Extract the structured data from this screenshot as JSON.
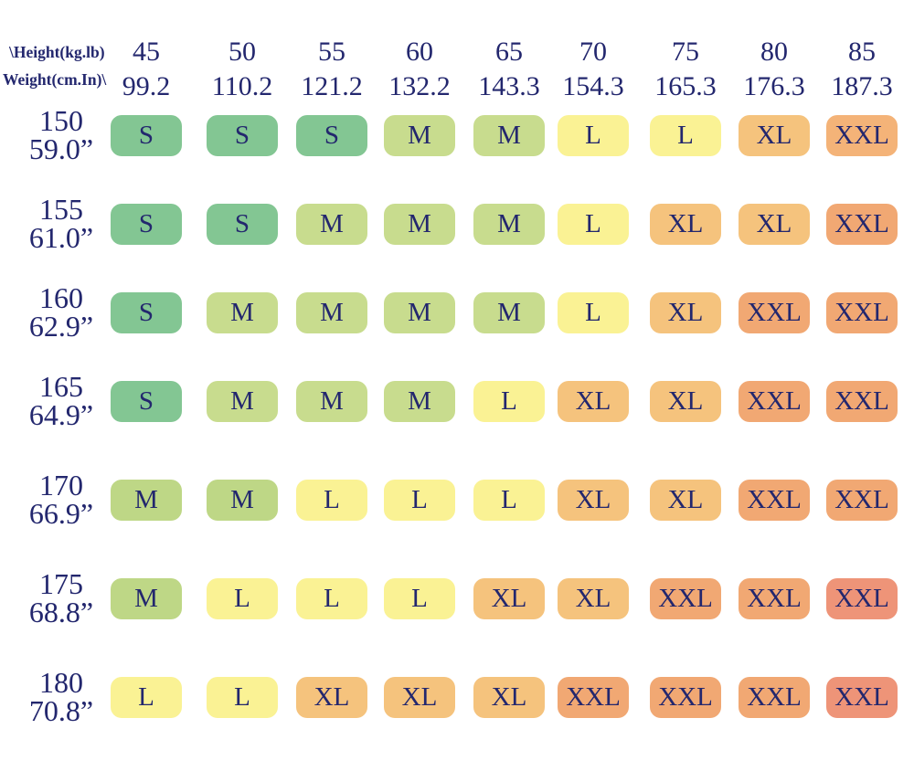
{
  "corner": {
    "line1": "\\Height(kg.lb)",
    "line2": "Weight(cm.In)\\"
  },
  "columns": [
    {
      "kg": "45",
      "lb": "99.2"
    },
    {
      "kg": "50",
      "lb": "110.2"
    },
    {
      "kg": "55",
      "lb": "121.2"
    },
    {
      "kg": "60",
      "lb": "132.2"
    },
    {
      "kg": "65",
      "lb": "143.3"
    },
    {
      "kg": "70",
      "lb": "154.3"
    },
    {
      "kg": "75",
      "lb": "165.3"
    },
    {
      "kg": "80",
      "lb": "176.3"
    },
    {
      "kg": "85",
      "lb": "187.3"
    }
  ],
  "rows": [
    {
      "cm": "150",
      "inch": "59.0”",
      "cells": [
        {
          "size": "S",
          "color": "s"
        },
        {
          "size": "S",
          "color": "s"
        },
        {
          "size": "S",
          "color": "s"
        },
        {
          "size": "M",
          "color": "m"
        },
        {
          "size": "M",
          "color": "m"
        },
        {
          "size": "L",
          "color": "l"
        },
        {
          "size": "L",
          "color": "l"
        },
        {
          "size": "XL",
          "color": "xl"
        },
        {
          "size": "XXL",
          "color": "xxl_light"
        }
      ]
    },
    {
      "cm": "155",
      "inch": "61.0”",
      "cells": [
        {
          "size": "S",
          "color": "s"
        },
        {
          "size": "S",
          "color": "s"
        },
        {
          "size": "M",
          "color": "m"
        },
        {
          "size": "M",
          "color": "m"
        },
        {
          "size": "M",
          "color": "m"
        },
        {
          "size": "L",
          "color": "l"
        },
        {
          "size": "XL",
          "color": "xl"
        },
        {
          "size": "XL",
          "color": "xl"
        },
        {
          "size": "XXL",
          "color": "xxl"
        }
      ]
    },
    {
      "cm": "160",
      "inch": "62.9”",
      "cells": [
        {
          "size": "S",
          "color": "s"
        },
        {
          "size": "M",
          "color": "m"
        },
        {
          "size": "M",
          "color": "m"
        },
        {
          "size": "M",
          "color": "m"
        },
        {
          "size": "M",
          "color": "m"
        },
        {
          "size": "L",
          "color": "l"
        },
        {
          "size": "XL",
          "color": "xl"
        },
        {
          "size": "XXL",
          "color": "xxl"
        },
        {
          "size": "XXL",
          "color": "xxl"
        }
      ]
    },
    {
      "cm": "165",
      "inch": "64.9”",
      "cells": [
        {
          "size": "S",
          "color": "s"
        },
        {
          "size": "M",
          "color": "m"
        },
        {
          "size": "M",
          "color": "m"
        },
        {
          "size": "M",
          "color": "m"
        },
        {
          "size": "L",
          "color": "l"
        },
        {
          "size": "XL",
          "color": "xl"
        },
        {
          "size": "XL",
          "color": "xl"
        },
        {
          "size": "XXL",
          "color": "xxl"
        },
        {
          "size": "XXL",
          "color": "xxl"
        }
      ]
    },
    {
      "cm": "170",
      "inch": "66.9”",
      "cells": [
        {
          "size": "M",
          "color": "m2"
        },
        {
          "size": "M",
          "color": "m2"
        },
        {
          "size": "L",
          "color": "l"
        },
        {
          "size": "L",
          "color": "l"
        },
        {
          "size": "L",
          "color": "l"
        },
        {
          "size": "XL",
          "color": "xl"
        },
        {
          "size": "XL",
          "color": "xl"
        },
        {
          "size": "XXL",
          "color": "xxl"
        },
        {
          "size": "XXL",
          "color": "xxl"
        }
      ]
    },
    {
      "cm": "175",
      "inch": "68.8”",
      "cells": [
        {
          "size": "M",
          "color": "m2"
        },
        {
          "size": "L",
          "color": "l"
        },
        {
          "size": "L",
          "color": "l"
        },
        {
          "size": "L",
          "color": "l"
        },
        {
          "size": "XL",
          "color": "xl"
        },
        {
          "size": "XL",
          "color": "xl"
        },
        {
          "size": "XXL",
          "color": "xxl"
        },
        {
          "size": "XXL",
          "color": "xxl"
        },
        {
          "size": "XXL",
          "color": "xxl_deep"
        }
      ]
    },
    {
      "cm": "180",
      "inch": "70.8”",
      "cells": [
        {
          "size": "L",
          "color": "l"
        },
        {
          "size": "L",
          "color": "l"
        },
        {
          "size": "XL",
          "color": "xl"
        },
        {
          "size": "XL",
          "color": "xl"
        },
        {
          "size": "XL",
          "color": "xl"
        },
        {
          "size": "XXL",
          "color": "xxl"
        },
        {
          "size": "XXL",
          "color": "xxl"
        },
        {
          "size": "XXL",
          "color": "xxl"
        },
        {
          "size": "XXL",
          "color": "xxl_deep"
        }
      ]
    }
  ],
  "palette": {
    "s": "#83C693",
    "m": "#C8DC8E",
    "m2": "#BED786",
    "l": "#FAF294",
    "xl": "#F5C37D",
    "xxl_light": "#F4B378",
    "xxl": "#F1A873",
    "xxl_deep": "#EE9478",
    "text": "#23276E"
  },
  "chart_data": {
    "type": "heatmap",
    "title": "Clothing size chart by weight (kg/lb) and height (cm/in)",
    "x_axis_label": "\\Height(kg.lb)",
    "y_axis_label": "Weight(cm.In)\\",
    "columns_kg": [
      45,
      50,
      55,
      60,
      65,
      70,
      75,
      80,
      85
    ],
    "columns_lb": [
      99.2,
      110.2,
      121.2,
      132.2,
      143.3,
      154.3,
      165.3,
      176.3,
      187.3
    ],
    "rows_cm": [
      150,
      155,
      160,
      165,
      170,
      175,
      180
    ],
    "rows_in": [
      "59.0",
      "61.0",
      "62.9",
      "64.9",
      "66.9",
      "68.8",
      "70.8"
    ],
    "sizes": [
      [
        "S",
        "S",
        "S",
        "M",
        "M",
        "L",
        "L",
        "XL",
        "XXL"
      ],
      [
        "S",
        "S",
        "M",
        "M",
        "M",
        "L",
        "XL",
        "XL",
        "XXL"
      ],
      [
        "S",
        "M",
        "M",
        "M",
        "M",
        "L",
        "XL",
        "XXL",
        "XXL"
      ],
      [
        "S",
        "M",
        "M",
        "M",
        "L",
        "XL",
        "XL",
        "XXL",
        "XXL"
      ],
      [
        "M",
        "M",
        "L",
        "L",
        "L",
        "XL",
        "XL",
        "XXL",
        "XXL"
      ],
      [
        "M",
        "L",
        "L",
        "L",
        "XL",
        "XL",
        "XXL",
        "XXL",
        "XXL"
      ],
      [
        "L",
        "L",
        "XL",
        "XL",
        "XL",
        "XXL",
        "XXL",
        "XXL",
        "XXL"
      ]
    ],
    "legend": "S=green, M=light-green, L=yellow, XL=orange, XXL=deep-orange/salmon",
    "grid": false
  }
}
